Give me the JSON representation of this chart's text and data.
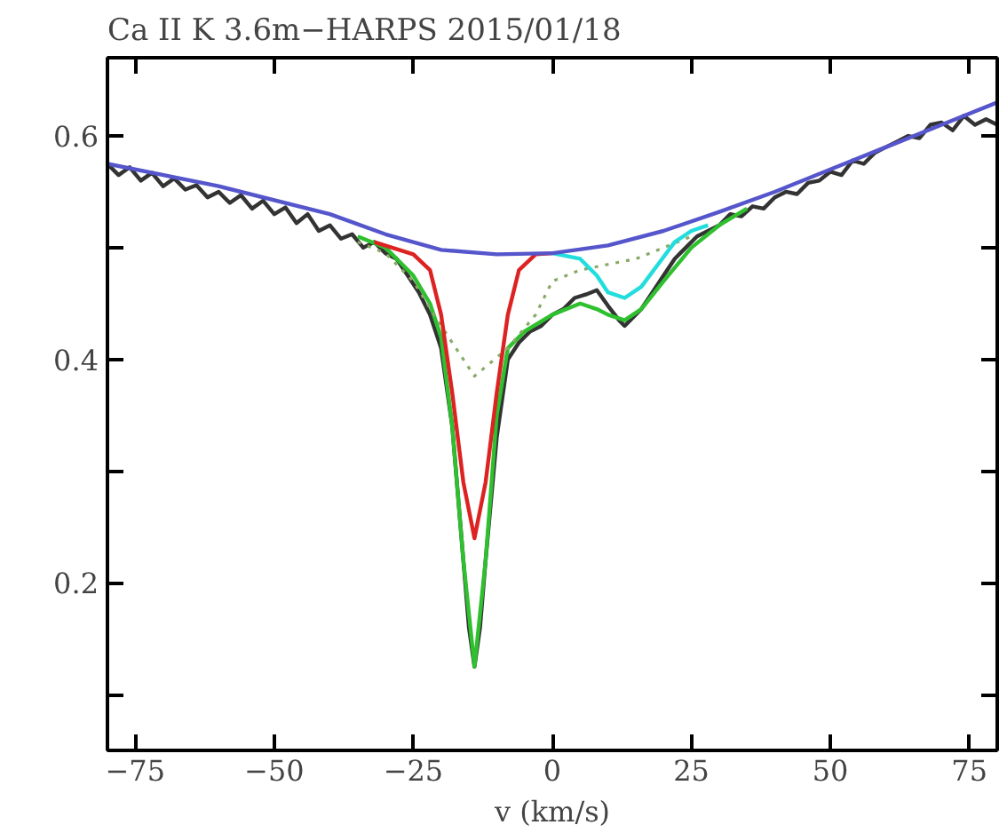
{
  "chart_data": {
    "type": "line",
    "title": "Ca II K 3.6m−HARPS 2015/01/18",
    "xlabel": "v (km/s)",
    "xlim": [
      -80,
      80
    ],
    "ylim": [
      0.05,
      0.67
    ],
    "xticks": [
      {
        "value": -75,
        "label": "−75"
      },
      {
        "value": -50,
        "label": "−50"
      },
      {
        "value": -25,
        "label": "−25"
      },
      0,
      25,
      50,
      75
    ],
    "yticks": [
      {
        "value": 0.1,
        "label": null
      },
      0.2,
      {
        "value": 0.3,
        "label": null
      },
      0.4,
      {
        "value": 0.5,
        "label": null
      },
      0.6
    ],
    "grid": false,
    "series": [
      {
        "color": "#333333",
        "x": [
          -80,
          -78,
          -76,
          -74,
          -72,
          -70,
          -68,
          -66,
          -64,
          -62,
          -60,
          -58,
          -56,
          -54,
          -52,
          -50,
          -48,
          -46,
          -44,
          -42,
          -40,
          -38,
          -36,
          -34,
          -32,
          -30,
          -28,
          -26,
          -24,
          -22,
          -20,
          -18,
          -16,
          -15,
          -14,
          -13,
          -12,
          -10,
          -8,
          -6,
          -4,
          -2,
          0,
          2,
          4,
          6,
          8,
          10,
          12,
          13,
          14,
          16,
          18,
          20,
          22,
          24,
          26,
          28,
          30,
          32,
          34,
          36,
          38,
          40,
          42,
          44,
          46,
          48,
          50,
          52,
          54,
          56,
          58,
          60,
          62,
          64,
          66,
          68,
          70,
          72,
          74,
          76,
          78,
          80
        ],
        "values": [
          0.575,
          0.565,
          0.572,
          0.56,
          0.567,
          0.555,
          0.562,
          0.552,
          0.556,
          0.545,
          0.55,
          0.54,
          0.547,
          0.535,
          0.542,
          0.53,
          0.536,
          0.522,
          0.53,
          0.515,
          0.52,
          0.508,
          0.512,
          0.5,
          0.505,
          0.495,
          0.49,
          0.475,
          0.46,
          0.44,
          0.41,
          0.34,
          0.22,
          0.16,
          0.125,
          0.16,
          0.22,
          0.33,
          0.4,
          0.415,
          0.425,
          0.43,
          0.44,
          0.445,
          0.455,
          0.458,
          0.462,
          0.448,
          0.435,
          0.43,
          0.435,
          0.445,
          0.46,
          0.475,
          0.49,
          0.5,
          0.51,
          0.515,
          0.52,
          0.53,
          0.528,
          0.537,
          0.535,
          0.545,
          0.55,
          0.548,
          0.558,
          0.56,
          0.568,
          0.565,
          0.578,
          0.575,
          0.585,
          0.59,
          0.595,
          0.6,
          0.598,
          0.61,
          0.612,
          0.605,
          0.618,
          0.61,
          0.615,
          0.61
        ]
      },
      {
        "color": "#2ec02e",
        "x": [
          -35,
          -30,
          -25,
          -22,
          -20,
          -18,
          -16,
          -14,
          -12,
          -10,
          -8,
          -5,
          0,
          5,
          8,
          10,
          13,
          16,
          20,
          25,
          30,
          35
        ],
        "values": [
          0.51,
          0.5,
          0.475,
          0.45,
          0.42,
          0.34,
          0.22,
          0.125,
          0.22,
          0.35,
          0.41,
          0.425,
          0.44,
          0.45,
          0.445,
          0.44,
          0.435,
          0.445,
          0.47,
          0.5,
          0.52,
          0.535
        ]
      },
      {
        "color": "#88aa66",
        "line_style": "dotted",
        "x": [
          -35,
          -30,
          -25,
          -20,
          -14,
          -8,
          -3,
          0,
          5,
          10,
          15,
          20,
          25
        ],
        "values": [
          0.505,
          0.495,
          0.47,
          0.43,
          0.385,
          0.41,
          0.44,
          0.47,
          0.48,
          0.485,
          0.49,
          0.5,
          0.51
        ]
      },
      {
        "color": "#dd2222",
        "x": [
          -32,
          -25,
          -22,
          -20,
          -18,
          -16,
          -14,
          -12,
          -10,
          -8,
          -6,
          -3,
          0
        ],
        "values": [
          0.505,
          0.494,
          0.48,
          0.44,
          0.37,
          0.29,
          0.24,
          0.29,
          0.37,
          0.44,
          0.48,
          0.494,
          0.495
        ]
      },
      {
        "color": "#22dddd",
        "x": [
          0,
          5,
          8,
          10,
          13,
          16,
          19,
          22,
          25,
          28
        ],
        "values": [
          0.495,
          0.49,
          0.475,
          0.46,
          0.455,
          0.465,
          0.485,
          0.505,
          0.515,
          0.52
        ]
      },
      {
        "color": "#5555cc",
        "x": [
          -80,
          -60,
          -40,
          -30,
          -20,
          -10,
          0,
          10,
          20,
          30,
          40,
          50,
          60,
          70,
          80
        ],
        "values": [
          0.575,
          0.555,
          0.53,
          0.512,
          0.498,
          0.494,
          0.495,
          0.502,
          0.515,
          0.532,
          0.55,
          0.57,
          0.59,
          0.61,
          0.63
        ]
      }
    ]
  }
}
